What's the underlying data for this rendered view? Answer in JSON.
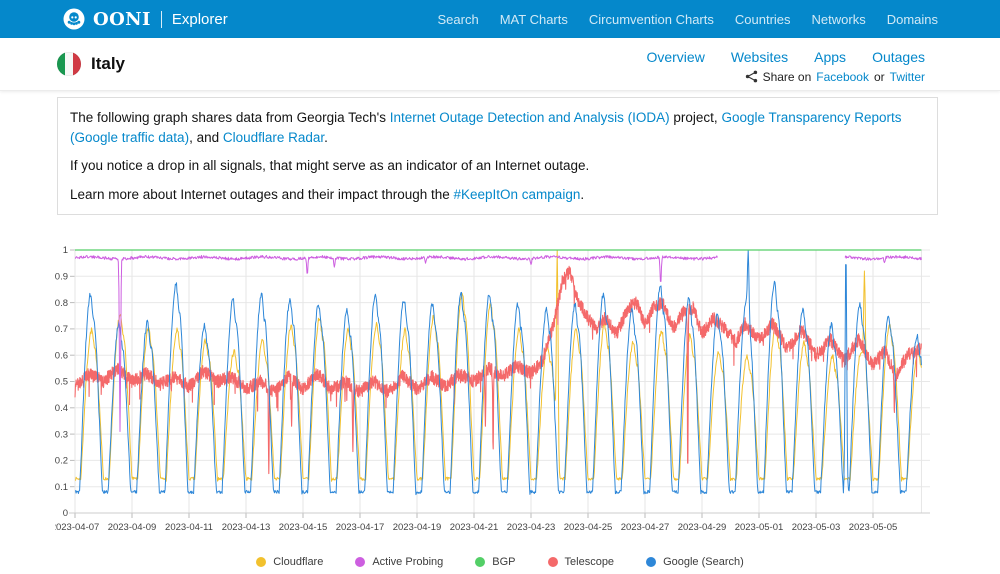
{
  "header": {
    "brand": {
      "name": "OONI",
      "product": "Explorer"
    },
    "nav": [
      "Search",
      "MAT Charts",
      "Circumvention Charts",
      "Countries",
      "Networks",
      "Domains"
    ]
  },
  "country_header": {
    "name": "Italy",
    "tabs": [
      "Overview",
      "Websites",
      "Apps",
      "Outages"
    ],
    "share": {
      "prefix": "Share on",
      "facebook": "Facebook",
      "or": "or",
      "twitter": "Twitter"
    }
  },
  "intro": {
    "p1": [
      {
        "t": "The following graph shares data from Georgia Tech's "
      },
      {
        "t": "Internet Outage Detection and Analysis (IODA)",
        "link": true
      },
      {
        "t": " project, "
      },
      {
        "t": "Google Transparency Reports (Google traffic data)",
        "link": true
      },
      {
        "t": ", and "
      },
      {
        "t": "Cloudflare Radar",
        "link": true
      },
      {
        "t": "."
      }
    ],
    "p2": [
      {
        "t": "If you notice a drop in all signals, that might serve as an indicator of an Internet outage."
      }
    ],
    "p3": [
      {
        "t": "Learn more about Internet outages and their impact through the "
      },
      {
        "t": "#KeepItOn campaign",
        "link": true
      },
      {
        "t": "."
      }
    ]
  },
  "colors": {
    "brand_blue": "#0588cb"
  },
  "chart_data": {
    "type": "line",
    "title": "",
    "xlabel": "",
    "ylabel": "",
    "ylim": [
      0,
      1
    ],
    "grid": true,
    "legend_position": "bottom",
    "x_domain_days": [
      0,
      29.7
    ],
    "x_tick_interval_days": 2,
    "x_tick_labels": [
      "2023-04-07",
      "2023-04-09",
      "2023-04-11",
      "2023-04-13",
      "2023-04-15",
      "2023-04-17",
      "2023-04-19",
      "2023-04-21",
      "2023-04-23",
      "2023-04-25",
      "2023-04-27",
      "2023-04-29",
      "2023-05-01",
      "2023-05-03",
      "2023-05-05"
    ],
    "y_tick_labels": [
      "0",
      "0.1",
      "0.2",
      "0.3",
      "0.4",
      "0.5",
      "0.6",
      "0.7",
      "0.8",
      "0.9",
      "1"
    ],
    "draw_order": [
      "Cloudflare",
      "Telescope",
      "Google (Search)",
      "Active Probing",
      "BGP"
    ],
    "series": [
      {
        "name": "Cloudflare",
        "color": "#f2c12e",
        "pattern": "diurnal",
        "night_min": 0.13,
        "phase": 0.04,
        "daily_peaks": [
          0.7,
          0.76,
          0.71,
          0.7,
          0.66,
          0.62,
          0.66,
          0.72,
          0.75,
          0.7,
          0.72,
          0.7,
          0.75,
          0.84,
          0.8,
          0.7,
          0.64,
          0.7,
          0.72,
          0.65,
          0.7,
          0.68,
          0.62,
          0.6,
          0.72,
          0.65,
          0.6,
          0.62,
          0.72,
          0.62
        ],
        "spikes": [
          [
            16.92,
            1.0
          ],
          [
            27.7,
            0.92
          ]
        ]
      },
      {
        "name": "Active Probing",
        "color": "#cd5fe0",
        "pattern": "band",
        "level": 0.97,
        "segments": [
          [
            0,
            22.55
          ],
          [
            27.02,
            29.7
          ]
        ],
        "dips": [
          [
            1.58,
            0.31
          ],
          [
            8.15,
            0.905
          ],
          [
            9.1,
            0.935
          ],
          [
            12.3,
            0.95
          ],
          [
            16.0,
            0.945
          ],
          [
            20.55,
            0.87
          ],
          [
            28.4,
            0.952
          ]
        ]
      },
      {
        "name": "BGP",
        "color": "#53cf67",
        "pattern": "flat",
        "level": 1.0,
        "segments": [
          [
            0,
            29.7
          ]
        ]
      },
      {
        "name": "Telescope",
        "color": "#f4696a",
        "pattern": "noisy",
        "noise": 0.05,
        "keyframes": [
          [
            0,
            0.48
          ],
          [
            0.5,
            0.53
          ],
          [
            1,
            0.5
          ],
          [
            1.5,
            0.55
          ],
          [
            2,
            0.5
          ],
          [
            2.5,
            0.53
          ],
          [
            3,
            0.49
          ],
          [
            3.5,
            0.52
          ],
          [
            4,
            0.48
          ],
          [
            4.5,
            0.54
          ],
          [
            5,
            0.5
          ],
          [
            5.5,
            0.52
          ],
          [
            6,
            0.47
          ],
          [
            6.5,
            0.5
          ],
          [
            7,
            0.46
          ],
          [
            7.5,
            0.52
          ],
          [
            8,
            0.47
          ],
          [
            8.5,
            0.53
          ],
          [
            9,
            0.47
          ],
          [
            9.5,
            0.5
          ],
          [
            10,
            0.46
          ],
          [
            10.5,
            0.5
          ],
          [
            11,
            0.46
          ],
          [
            11.5,
            0.52
          ],
          [
            12,
            0.47
          ],
          [
            12.5,
            0.52
          ],
          [
            13,
            0.48
          ],
          [
            13.5,
            0.53
          ],
          [
            14,
            0.5
          ],
          [
            14.5,
            0.55
          ],
          [
            15,
            0.52
          ],
          [
            15.5,
            0.56
          ],
          [
            16,
            0.53
          ],
          [
            16.4,
            0.58
          ],
          [
            16.8,
            0.72
          ],
          [
            17.1,
            0.88
          ],
          [
            17.35,
            0.92
          ],
          [
            17.6,
            0.82
          ],
          [
            18,
            0.74
          ],
          [
            18.3,
            0.7
          ],
          [
            18.6,
            0.74
          ],
          [
            19,
            0.68
          ],
          [
            19.4,
            0.78
          ],
          [
            19.7,
            0.8
          ],
          [
            20,
            0.72
          ],
          [
            20.3,
            0.78
          ],
          [
            20.6,
            0.8
          ],
          [
            21,
            0.7
          ],
          [
            21.3,
            0.76
          ],
          [
            21.7,
            0.78
          ],
          [
            22,
            0.68
          ],
          [
            22.4,
            0.74
          ],
          [
            22.8,
            0.7
          ],
          [
            23.2,
            0.65
          ],
          [
            23.5,
            0.72
          ],
          [
            24,
            0.66
          ],
          [
            24.5,
            0.72
          ],
          [
            25,
            0.62
          ],
          [
            25.5,
            0.7
          ],
          [
            26,
            0.6
          ],
          [
            26.5,
            0.66
          ],
          [
            27,
            0.58
          ],
          [
            27.5,
            0.66
          ],
          [
            28,
            0.56
          ],
          [
            28.4,
            0.62
          ],
          [
            28.8,
            0.52
          ],
          [
            29.2,
            0.6
          ],
          [
            29.7,
            0.63
          ]
        ],
        "down_spikes": [
          [
            6.8,
            0.15
          ],
          [
            7.6,
            0.33
          ],
          [
            9.75,
            0.23
          ],
          [
            14.4,
            0.33
          ],
          [
            14.67,
            0.24
          ],
          [
            21.5,
            0.16
          ],
          [
            28.75,
            0.38
          ]
        ]
      },
      {
        "name": "Google (Search)",
        "color": "#2e87d8",
        "pattern": "diurnal",
        "night_min": 0.08,
        "phase": 0,
        "daily_peaks": [
          0.84,
          0.73,
          0.73,
          0.88,
          0.72,
          0.82,
          0.84,
          0.82,
          0.8,
          0.78,
          0.84,
          0.82,
          0.8,
          0.84,
          0.84,
          0.8,
          0.78,
          0.8,
          0.84,
          0.78,
          0.87,
          0.82,
          0.76,
          0.8,
          0.88,
          0.78,
          0.72,
          0.8,
          0.76,
          0.68
        ],
        "spikes": [
          [
            23.62,
            1.0
          ],
          [
            27.05,
            1.0
          ]
        ]
      }
    ]
  }
}
